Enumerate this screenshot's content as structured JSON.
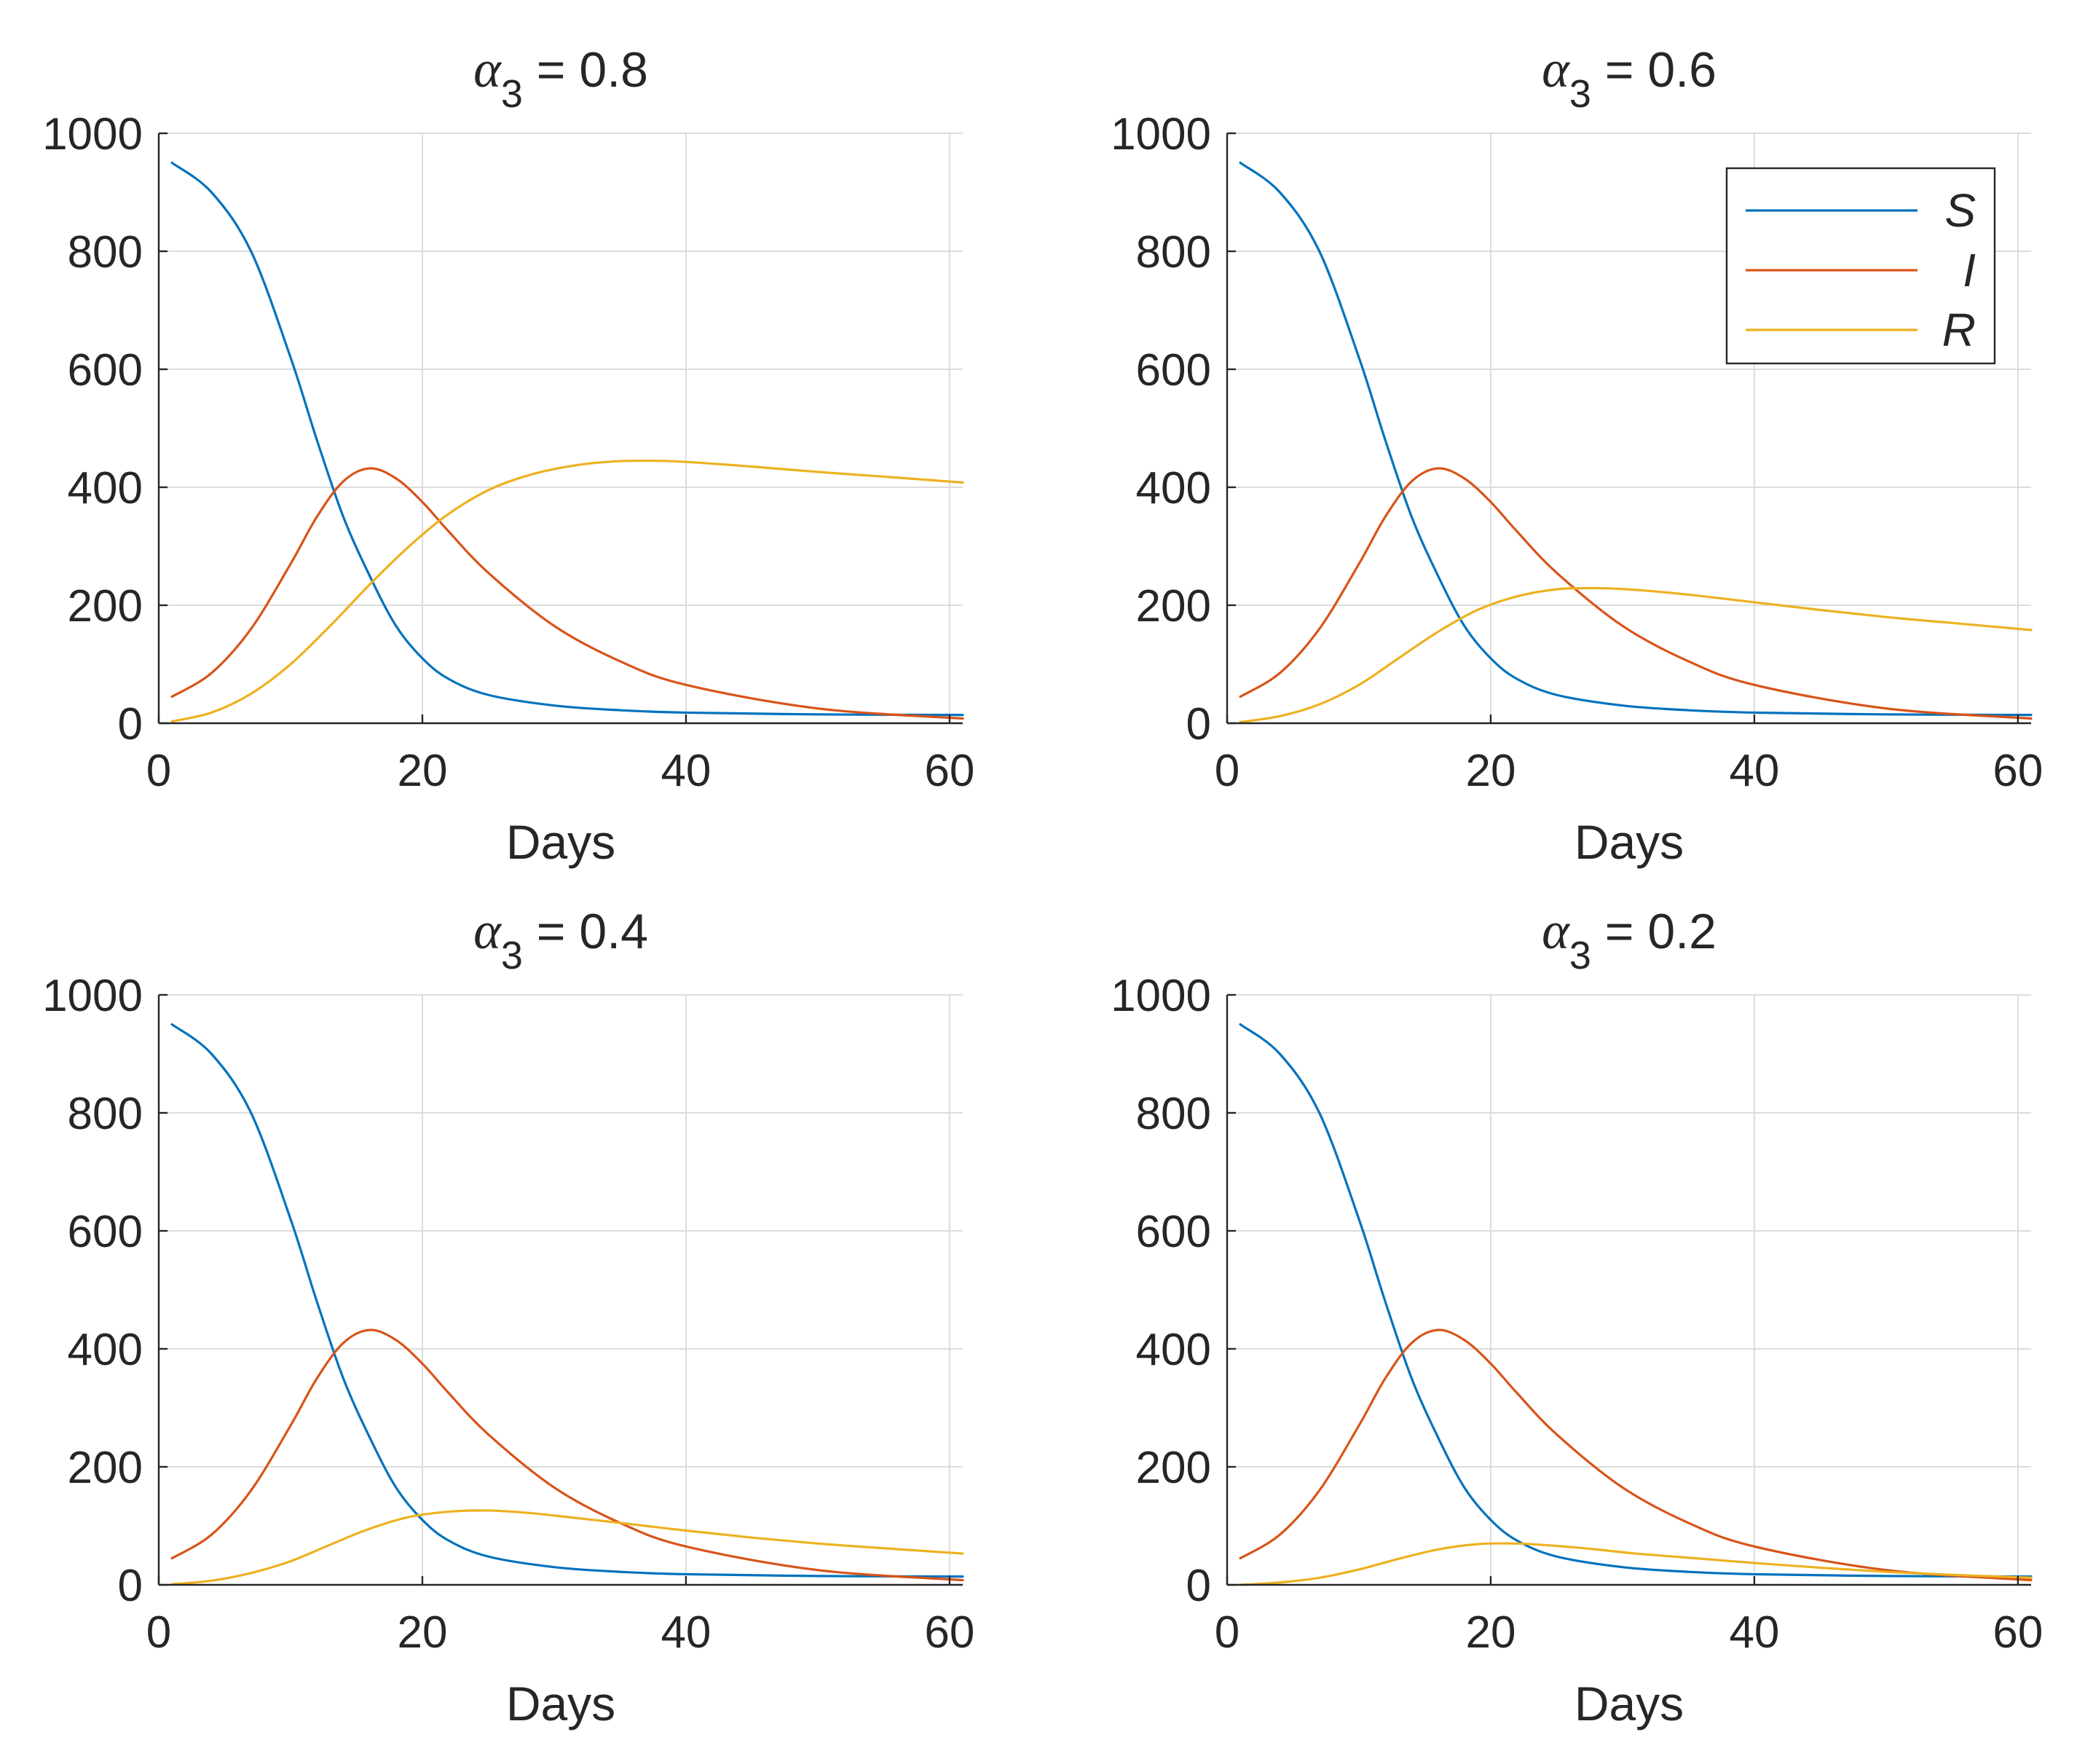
{
  "figure": {
    "series_names": [
      "S",
      "I",
      "R"
    ],
    "colors": {
      "S": "#0072bd",
      "I": "#d95319",
      "R": "#edb120"
    },
    "xlabel": "Days"
  },
  "chart_data": [
    {
      "type": "line",
      "title": "α3 = 0.8",
      "title_symbol": "α",
      "title_subscript": "3",
      "title_value": " = 0.8",
      "xlabel": "Days",
      "ylabel": "",
      "xlim": [
        0,
        61
      ],
      "ylim": [
        0,
        1000
      ],
      "xticks": [
        0,
        20,
        40,
        60
      ],
      "yticks": [
        0,
        200,
        400,
        600,
        800,
        1000
      ],
      "grid": true,
      "series": [
        {
          "name": "S",
          "x": [
            1,
            4,
            7,
            10,
            12,
            14,
            16,
            18,
            20,
            22,
            25,
            30,
            35,
            40,
            50,
            61
          ],
          "values": [
            950,
            900,
            800,
            620,
            480,
            350,
            250,
            165,
            110,
            75,
            48,
            30,
            22,
            18,
            15,
            14
          ]
        },
        {
          "name": "I",
          "x": [
            1,
            4,
            7,
            10,
            12,
            14,
            16,
            18,
            20,
            22,
            25,
            30,
            35,
            40,
            50,
            61
          ],
          "values": [
            45,
            85,
            160,
            270,
            350,
            410,
            432,
            415,
            375,
            325,
            255,
            165,
            105,
            65,
            25,
            8
          ]
        },
        {
          "name": "R",
          "x": [
            1,
            4,
            7,
            10,
            13,
            16,
            19,
            22,
            25,
            28,
            31,
            34,
            37,
            40,
            45,
            50,
            55,
            61
          ],
          "values": [
            3,
            18,
            50,
            100,
            165,
            235,
            300,
            355,
            395,
            420,
            435,
            443,
            445,
            443,
            435,
            426,
            418,
            408
          ]
        }
      ]
    },
    {
      "type": "line",
      "title": "α3 = 0.6",
      "title_symbol": "α",
      "title_subscript": "3",
      "title_value": " = 0.6",
      "xlabel": "Days",
      "ylabel": "",
      "xlim": [
        0,
        61
      ],
      "ylim": [
        0,
        1000
      ],
      "xticks": [
        0,
        20,
        40,
        60
      ],
      "yticks": [
        0,
        200,
        400,
        600,
        800,
        1000
      ],
      "grid": true,
      "legend": {
        "entries": [
          "S",
          "I",
          "R"
        ],
        "location": "top-right"
      },
      "series": [
        {
          "name": "S",
          "x": [
            1,
            4,
            7,
            10,
            12,
            14,
            16,
            18,
            20,
            22,
            25,
            30,
            35,
            40,
            50,
            61
          ],
          "values": [
            950,
            900,
            800,
            620,
            480,
            350,
            250,
            165,
            110,
            75,
            48,
            30,
            22,
            18,
            15,
            14
          ]
        },
        {
          "name": "I",
          "x": [
            1,
            4,
            7,
            10,
            12,
            14,
            16,
            18,
            20,
            22,
            25,
            30,
            35,
            40,
            50,
            61
          ],
          "values": [
            45,
            85,
            160,
            270,
            350,
            410,
            432,
            415,
            375,
            325,
            255,
            165,
            105,
            65,
            25,
            8
          ]
        },
        {
          "name": "R",
          "x": [
            1,
            4,
            7,
            10,
            13,
            16,
            19,
            22,
            25,
            28,
            31,
            35,
            40,
            45,
            50,
            55,
            61
          ],
          "values": [
            2,
            12,
            32,
            65,
            110,
            155,
            192,
            215,
            227,
            229,
            226,
            218,
            205,
            192,
            180,
            170,
            158
          ]
        }
      ]
    },
    {
      "type": "line",
      "title": "α3 = 0.4",
      "title_symbol": "α",
      "title_subscript": "3",
      "title_value": " = 0.4",
      "xlabel": "Days",
      "ylabel": "",
      "xlim": [
        0,
        61
      ],
      "ylim": [
        0,
        1000
      ],
      "xticks": [
        0,
        20,
        40,
        60
      ],
      "yticks": [
        0,
        200,
        400,
        600,
        800,
        1000
      ],
      "grid": true,
      "series": [
        {
          "name": "S",
          "x": [
            1,
            4,
            7,
            10,
            12,
            14,
            16,
            18,
            20,
            22,
            25,
            30,
            35,
            40,
            50,
            61
          ],
          "values": [
            950,
            900,
            800,
            620,
            480,
            350,
            250,
            165,
            110,
            75,
            48,
            30,
            22,
            18,
            15,
            14
          ]
        },
        {
          "name": "I",
          "x": [
            1,
            4,
            7,
            10,
            12,
            14,
            16,
            18,
            20,
            22,
            25,
            30,
            35,
            40,
            50,
            61
          ],
          "values": [
            45,
            85,
            160,
            270,
            350,
            410,
            432,
            415,
            375,
            325,
            255,
            165,
            105,
            65,
            25,
            8
          ]
        },
        {
          "name": "R",
          "x": [
            1,
            4,
            7,
            10,
            13,
            16,
            19,
            22,
            25,
            28,
            31,
            35,
            40,
            45,
            50,
            55,
            61
          ],
          "values": [
            1,
            7,
            20,
            40,
            68,
            95,
            115,
            124,
            126,
            122,
            115,
            105,
            92,
            80,
            70,
            62,
            53
          ]
        }
      ]
    },
    {
      "type": "line",
      "title": "α3 = 0.2",
      "title_symbol": "α",
      "title_subscript": "3",
      "title_value": " = 0.2",
      "xlabel": "Days",
      "ylabel": "",
      "xlim": [
        0,
        61
      ],
      "ylim": [
        0,
        1000
      ],
      "xticks": [
        0,
        20,
        40,
        60
      ],
      "yticks": [
        0,
        200,
        400,
        600,
        800,
        1000
      ],
      "grid": true,
      "series": [
        {
          "name": "S",
          "x": [
            1,
            4,
            7,
            10,
            12,
            14,
            16,
            18,
            20,
            22,
            25,
            30,
            35,
            40,
            50,
            61
          ],
          "values": [
            950,
            900,
            800,
            620,
            480,
            350,
            250,
            165,
            110,
            75,
            48,
            30,
            22,
            18,
            15,
            14
          ]
        },
        {
          "name": "I",
          "x": [
            1,
            4,
            7,
            10,
            12,
            14,
            16,
            18,
            20,
            22,
            25,
            30,
            35,
            40,
            50,
            61
          ],
          "values": [
            45,
            85,
            160,
            270,
            350,
            410,
            432,
            415,
            375,
            325,
            255,
            165,
            105,
            65,
            25,
            8
          ]
        },
        {
          "name": "R",
          "x": [
            1,
            4,
            7,
            10,
            13,
            16,
            19,
            22,
            25,
            28,
            31,
            35,
            40,
            45,
            50,
            55,
            61
          ],
          "values": [
            0,
            4,
            12,
            26,
            44,
            60,
            69,
            70,
            66,
            60,
            53,
            46,
            37,
            29,
            22,
            17,
            12
          ]
        }
      ]
    }
  ]
}
